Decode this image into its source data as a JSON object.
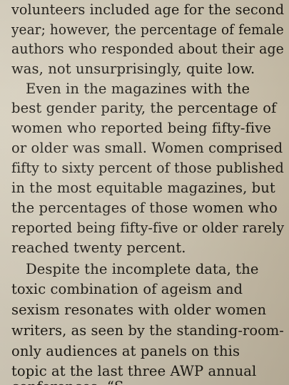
{
  "document": {
    "lines": [
      "volunteers included age for the second",
      "year; however, the percentage of female",
      "authors who responded about their age",
      "was, not unsurprisingly, quite low.",
      "Even in the magazines with the",
      "best gender parity, the percentage of",
      "women who reported being fifty-five",
      "or older was small. Women comprised",
      "fifty to sixty percent of those published",
      "in the most equitable magazines, but",
      "the percentages of those women who",
      "reported being fifty-five or older rarely",
      "reached twenty percent.",
      "Despite the incomplete data, the",
      "toxic combination of ageism and",
      "sexism resonates with older women",
      "writers, as seen by the standing-room-",
      "only audiences at panels on this",
      "topic at the last three AWP annual",
      "conferences: “S"
    ]
  }
}
